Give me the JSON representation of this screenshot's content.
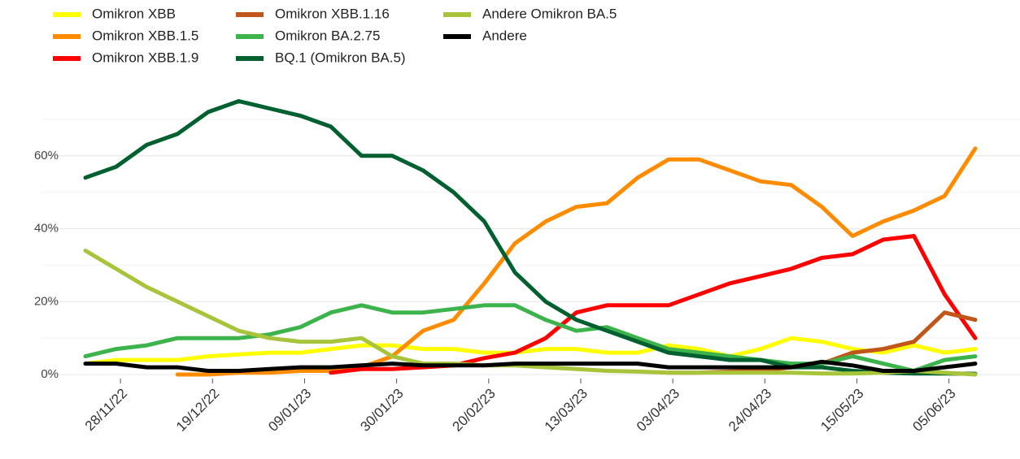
{
  "chart_data": {
    "type": "line",
    "x": [
      "20/11/22",
      "27/11/22",
      "04/12/22",
      "11/12/22",
      "18/12/22",
      "25/12/22",
      "01/01/23",
      "08/01/23",
      "15/01/23",
      "22/01/23",
      "29/01/23",
      "05/02/23",
      "12/02/23",
      "19/02/23",
      "26/02/23",
      "05/03/23",
      "12/03/23",
      "19/03/23",
      "26/03/23",
      "02/04/23",
      "09/04/23",
      "16/04/23",
      "23/04/23",
      "30/04/23",
      "07/05/23",
      "14/05/23",
      "21/05/23",
      "28/05/23",
      "04/06/23",
      "11/06/23"
    ],
    "series": [
      {
        "name": "Omikron XBB",
        "color": "#ffff00",
        "values": [
          3,
          4,
          4,
          4,
          5,
          5.5,
          6,
          6,
          7,
          8,
          8,
          7,
          7,
          6,
          6,
          7,
          7,
          6,
          6,
          8,
          7,
          5,
          7,
          10,
          9,
          7,
          6,
          8,
          6,
          7
        ]
      },
      {
        "name": "Omikron XBB.1.5",
        "color": "#ff8c00",
        "values": [
          null,
          null,
          null,
          0,
          0,
          0.5,
          0.5,
          1,
          1,
          2,
          5,
          12,
          15,
          25,
          36,
          42,
          46,
          47,
          54,
          59,
          59,
          56,
          53,
          52,
          46,
          38,
          42,
          45,
          49,
          62
        ]
      },
      {
        "name": "Omikron XBB.1.9",
        "color": "#ff0000",
        "values": [
          null,
          null,
          null,
          null,
          null,
          null,
          null,
          null,
          0.5,
          1.5,
          1.5,
          2,
          2.5,
          4.5,
          6,
          10,
          17,
          19,
          19,
          19,
          22,
          25,
          27,
          29,
          32,
          33,
          37,
          38,
          22,
          10
        ]
      },
      {
        "name": "Omikron XBB.1.16",
        "color": "#c0561a",
        "values": [
          null,
          null,
          null,
          null,
          null,
          null,
          null,
          null,
          null,
          null,
          null,
          null,
          null,
          null,
          null,
          null,
          null,
          null,
          null,
          0.5,
          0.5,
          0.8,
          1,
          2,
          3,
          6,
          7,
          9,
          17,
          15
        ]
      },
      {
        "name": "Omikron BA.2.75",
        "color": "#3cb44b",
        "values": [
          5,
          7,
          8,
          10,
          10,
          10,
          11,
          13,
          17,
          19,
          17,
          17,
          18,
          19,
          19,
          15,
          12,
          13,
          10,
          7,
          6,
          5,
          4,
          3,
          3,
          5,
          3,
          1,
          4,
          5
        ]
      },
      {
        "name": "BQ.1 (Omikron BA.5)",
        "color": "#00602f",
        "values": [
          54,
          57,
          63,
          66,
          72,
          75,
          73,
          71,
          68,
          60,
          60,
          56,
          50,
          42,
          28,
          20,
          15,
          12,
          9,
          6,
          5,
          4,
          4,
          2,
          2,
          1,
          0.5,
          0.3,
          0.3,
          0.2
        ]
      },
      {
        "name": "Andere Omikron BA.5",
        "color": "#a8c43b",
        "values": [
          34,
          29,
          24,
          20,
          16,
          12,
          10,
          9,
          9,
          10,
          5,
          3,
          3,
          2.5,
          2.5,
          2,
          1.5,
          1,
          0.8,
          0.5,
          0.5,
          0.5,
          0.5,
          0.5,
          0.3,
          0.3,
          0.5,
          1,
          0.5,
          0
        ]
      },
      {
        "name": "Andere",
        "color": "#000000",
        "values": [
          3,
          3,
          2,
          2,
          1,
          1,
          1.5,
          2,
          2,
          2.5,
          3,
          2.5,
          2.5,
          2.5,
          3,
          3,
          3,
          3,
          3,
          2,
          2,
          2,
          2,
          2,
          3.5,
          2.5,
          1,
          1,
          2,
          3
        ]
      }
    ],
    "xlim": [
      "20/11/22",
      "11/06/23"
    ],
    "xticks": [
      "28/11/22",
      "19/12/22",
      "09/01/23",
      "30/01/23",
      "20/02/23",
      "13/03/23",
      "03/04/23",
      "24/04/23",
      "15/05/23",
      "05/06/23"
    ],
    "ylim": [
      -2,
      76
    ],
    "yticks": [
      {
        "value": 0,
        "label": "0%"
      },
      {
        "value": 20,
        "label": "20%"
      },
      {
        "value": 40,
        "label": "40%"
      },
      {
        "value": 60,
        "label": "60%"
      }
    ],
    "y_minor_grid": [
      10,
      30,
      50,
      70
    ],
    "grid": true,
    "legend": "top-left"
  }
}
